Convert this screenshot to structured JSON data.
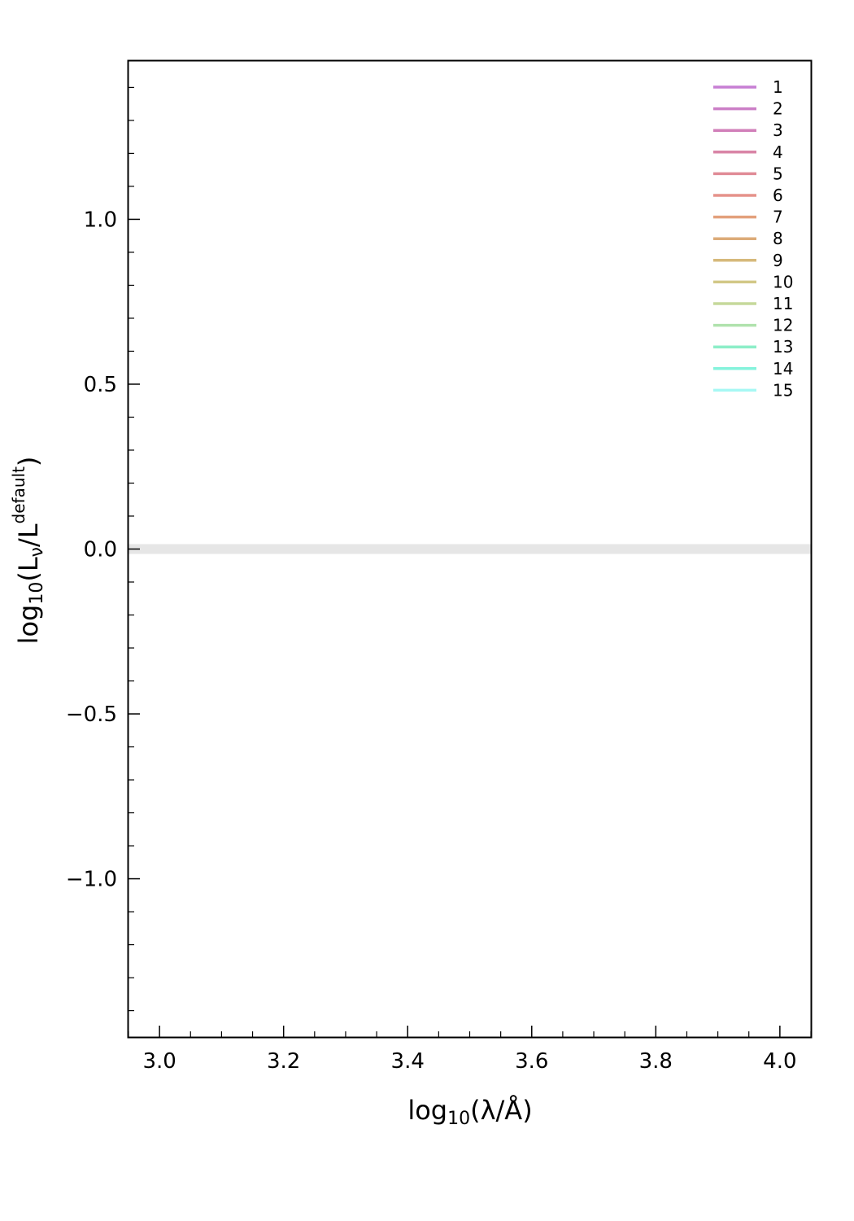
{
  "chart_data": {
    "type": "line",
    "title": "",
    "xlabel": {
      "pre": "log",
      "sub": "10",
      "post": "(λ/Å)"
    },
    "ylabel": {
      "pre": "log",
      "sub": "10",
      "mid": "(L",
      "sub2": "ν",
      "mid2": "/L",
      "sup": "default",
      "post": ")"
    },
    "xlim": [
      2.95,
      4.05
    ],
    "ylim": [
      -1.48,
      1.48
    ],
    "x_ticks": [
      3.0,
      3.2,
      3.4,
      3.6,
      3.8,
      4.0
    ],
    "x_tick_labels": [
      "3.0",
      "3.2",
      "3.4",
      "3.6",
      "3.8",
      "4.0"
    ],
    "x_minor_step": 0.05,
    "y_ticks": [
      -1.0,
      -0.5,
      0.0,
      0.5,
      1.0
    ],
    "y_tick_labels": [
      "−1.0",
      "−0.5",
      "0.0",
      "0.5",
      "1.0"
    ],
    "y_minor_step": 0.1,
    "reference_band": {
      "y": 0.0,
      "color": "#e6e6e6"
    },
    "legend_position": "top-right",
    "grid": false,
    "series": [
      {
        "name": "1",
        "color": "#c77fd4",
        "x": [],
        "y": []
      },
      {
        "name": "2",
        "color": "#cc7fc7",
        "x": [],
        "y": []
      },
      {
        "name": "3",
        "color": "#d17fb9",
        "x": [],
        "y": []
      },
      {
        "name": "4",
        "color": "#d984a6",
        "x": [],
        "y": []
      },
      {
        "name": "5",
        "color": "#e08b96",
        "x": [],
        "y": []
      },
      {
        "name": "6",
        "color": "#e5928a",
        "x": [],
        "y": []
      },
      {
        "name": "7",
        "color": "#e3a07c",
        "x": [],
        "y": []
      },
      {
        "name": "8",
        "color": "#dcab78",
        "x": [],
        "y": []
      },
      {
        "name": "9",
        "color": "#d6b97b",
        "x": [],
        "y": []
      },
      {
        "name": "10",
        "color": "#d2c887",
        "x": [],
        "y": []
      },
      {
        "name": "11",
        "color": "#c6d99b",
        "x": [],
        "y": []
      },
      {
        "name": "12",
        "color": "#b0e2ad",
        "x": [],
        "y": []
      },
      {
        "name": "13",
        "color": "#8ceec8",
        "x": [],
        "y": []
      },
      {
        "name": "14",
        "color": "#85f3dc",
        "x": [],
        "y": []
      },
      {
        "name": "15",
        "color": "#a8f8f4",
        "x": [],
        "y": []
      }
    ]
  }
}
